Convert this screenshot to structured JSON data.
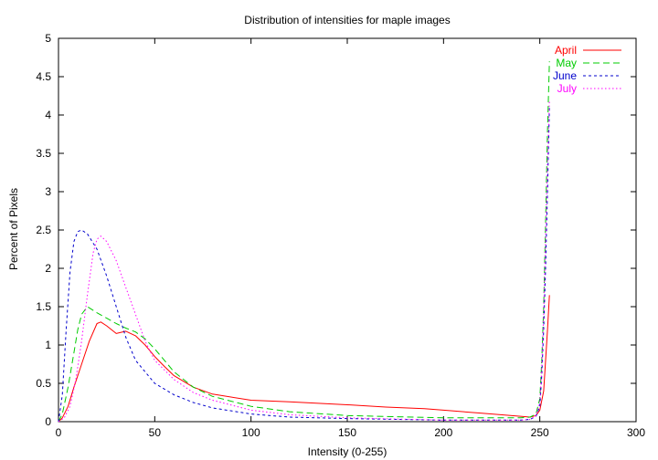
{
  "chart_data": {
    "type": "line",
    "title": "Distribution of intensities for maple images",
    "xlabel": "Intensity (0-255)",
    "ylabel": "Percent of Pixels",
    "xlim": [
      0,
      300
    ],
    "ylim": [
      0,
      5
    ],
    "xticks": [
      "0",
      "50",
      "100",
      "150",
      "200",
      "250",
      "300"
    ],
    "yticks": [
      "0",
      "0.5",
      "1",
      "1.5",
      "2",
      "2.5",
      "3",
      "3.5",
      "4",
      "4.5",
      "5"
    ],
    "grid": false,
    "legend": "top-right",
    "series": [
      {
        "name": "April",
        "color": "#ff0000",
        "dash": "solid",
        "x": [
          0,
          2,
          5,
          8,
          12,
          16,
          20,
          22,
          25,
          30,
          35,
          40,
          45,
          50,
          55,
          60,
          70,
          80,
          100,
          120,
          150,
          170,
          190,
          200,
          220,
          240,
          245,
          248,
          250,
          252,
          253,
          254,
          255
        ],
        "y": [
          0.0,
          0.05,
          0.2,
          0.45,
          0.75,
          1.05,
          1.28,
          1.3,
          1.25,
          1.15,
          1.18,
          1.12,
          1.0,
          0.85,
          0.72,
          0.6,
          0.45,
          0.36,
          0.28,
          0.26,
          0.22,
          0.19,
          0.17,
          0.15,
          0.11,
          0.07,
          0.06,
          0.08,
          0.15,
          0.4,
          0.8,
          1.2,
          1.65
        ]
      },
      {
        "name": "May",
        "color": "#00cc00",
        "dash": "7,4",
        "x": [
          0,
          2,
          5,
          8,
          10,
          12,
          15,
          20,
          25,
          30,
          35,
          40,
          45,
          50,
          55,
          60,
          70,
          80,
          100,
          120,
          150,
          200,
          240,
          245,
          248,
          250,
          251,
          252,
          253,
          254,
          255
        ],
        "y": [
          0.0,
          0.1,
          0.45,
          0.9,
          1.2,
          1.4,
          1.5,
          1.42,
          1.35,
          1.28,
          1.22,
          1.17,
          1.08,
          0.95,
          0.8,
          0.65,
          0.45,
          0.33,
          0.2,
          0.13,
          0.08,
          0.05,
          0.05,
          0.06,
          0.1,
          0.3,
          0.8,
          1.5,
          2.6,
          3.8,
          4.7
        ]
      },
      {
        "name": "June",
        "color": "#0000cc",
        "dash": "3,3",
        "x": [
          0,
          2,
          4,
          6,
          8,
          10,
          12,
          15,
          20,
          25,
          30,
          35,
          40,
          50,
          60,
          70,
          80,
          100,
          120,
          150,
          200,
          240,
          245,
          248,
          250,
          251,
          252,
          253,
          254,
          255
        ],
        "y": [
          0.0,
          0.35,
          1.2,
          1.95,
          2.35,
          2.48,
          2.5,
          2.45,
          2.25,
          1.9,
          1.5,
          1.1,
          0.8,
          0.5,
          0.35,
          0.25,
          0.18,
          0.1,
          0.06,
          0.04,
          0.02,
          0.02,
          0.03,
          0.07,
          0.2,
          0.6,
          1.2,
          2.0,
          3.0,
          4.1
        ]
      },
      {
        "name": "July",
        "color": "#ff00ff",
        "dash": "1.5,2.5",
        "x": [
          0,
          3,
          6,
          9,
          12,
          15,
          18,
          20,
          22,
          25,
          30,
          35,
          40,
          45,
          50,
          60,
          70,
          80,
          100,
          120,
          150,
          200,
          240,
          245,
          248,
          250,
          251,
          252,
          253,
          254,
          255
        ],
        "y": [
          0.0,
          0.05,
          0.2,
          0.55,
          1.05,
          1.65,
          2.2,
          2.38,
          2.42,
          2.35,
          2.1,
          1.75,
          1.4,
          1.05,
          0.8,
          0.55,
          0.38,
          0.28,
          0.15,
          0.09,
          0.05,
          0.02,
          0.02,
          0.03,
          0.08,
          0.25,
          0.7,
          1.4,
          2.4,
          3.4,
          4.2
        ]
      }
    ]
  }
}
